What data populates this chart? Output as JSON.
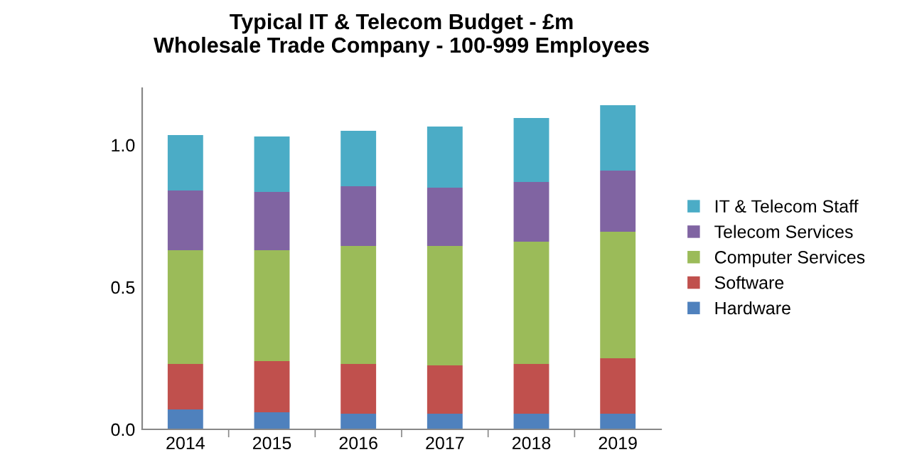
{
  "chart_data": {
    "type": "bar",
    "title": "Typical IT & Telecom Budget - £m\nWholesale Trade Company - 100-999 Employees",
    "categories": [
      "2014",
      "2015",
      "2016",
      "2017",
      "2018",
      "2019"
    ],
    "stacked": true,
    "series": [
      {
        "name": "Hardware",
        "color": "#4f81bd",
        "values": [
          0.07,
          0.06,
          0.055,
          0.055,
          0.055,
          0.055
        ]
      },
      {
        "name": "Software",
        "color": "#c0504d",
        "values": [
          0.16,
          0.18,
          0.175,
          0.17,
          0.175,
          0.195
        ]
      },
      {
        "name": "Computer Services",
        "color": "#9bbb59",
        "values": [
          0.4,
          0.39,
          0.415,
          0.42,
          0.43,
          0.445
        ]
      },
      {
        "name": "Telecom Services",
        "color": "#8064a2",
        "values": [
          0.21,
          0.205,
          0.21,
          0.205,
          0.21,
          0.215
        ]
      },
      {
        "name": "IT & Telecom Staff",
        "color": "#4bacc6",
        "values": [
          0.195,
          0.195,
          0.195,
          0.215,
          0.225,
          0.23
        ]
      }
    ],
    "ylim": [
      0,
      1.2
    ],
    "yticks": [
      {
        "value": 0,
        "label": "0.0"
      },
      {
        "value": 0.5,
        "label": "0.5"
      },
      {
        "value": 1,
        "label": "1.0"
      }
    ],
    "grid": false,
    "legend": "right"
  }
}
